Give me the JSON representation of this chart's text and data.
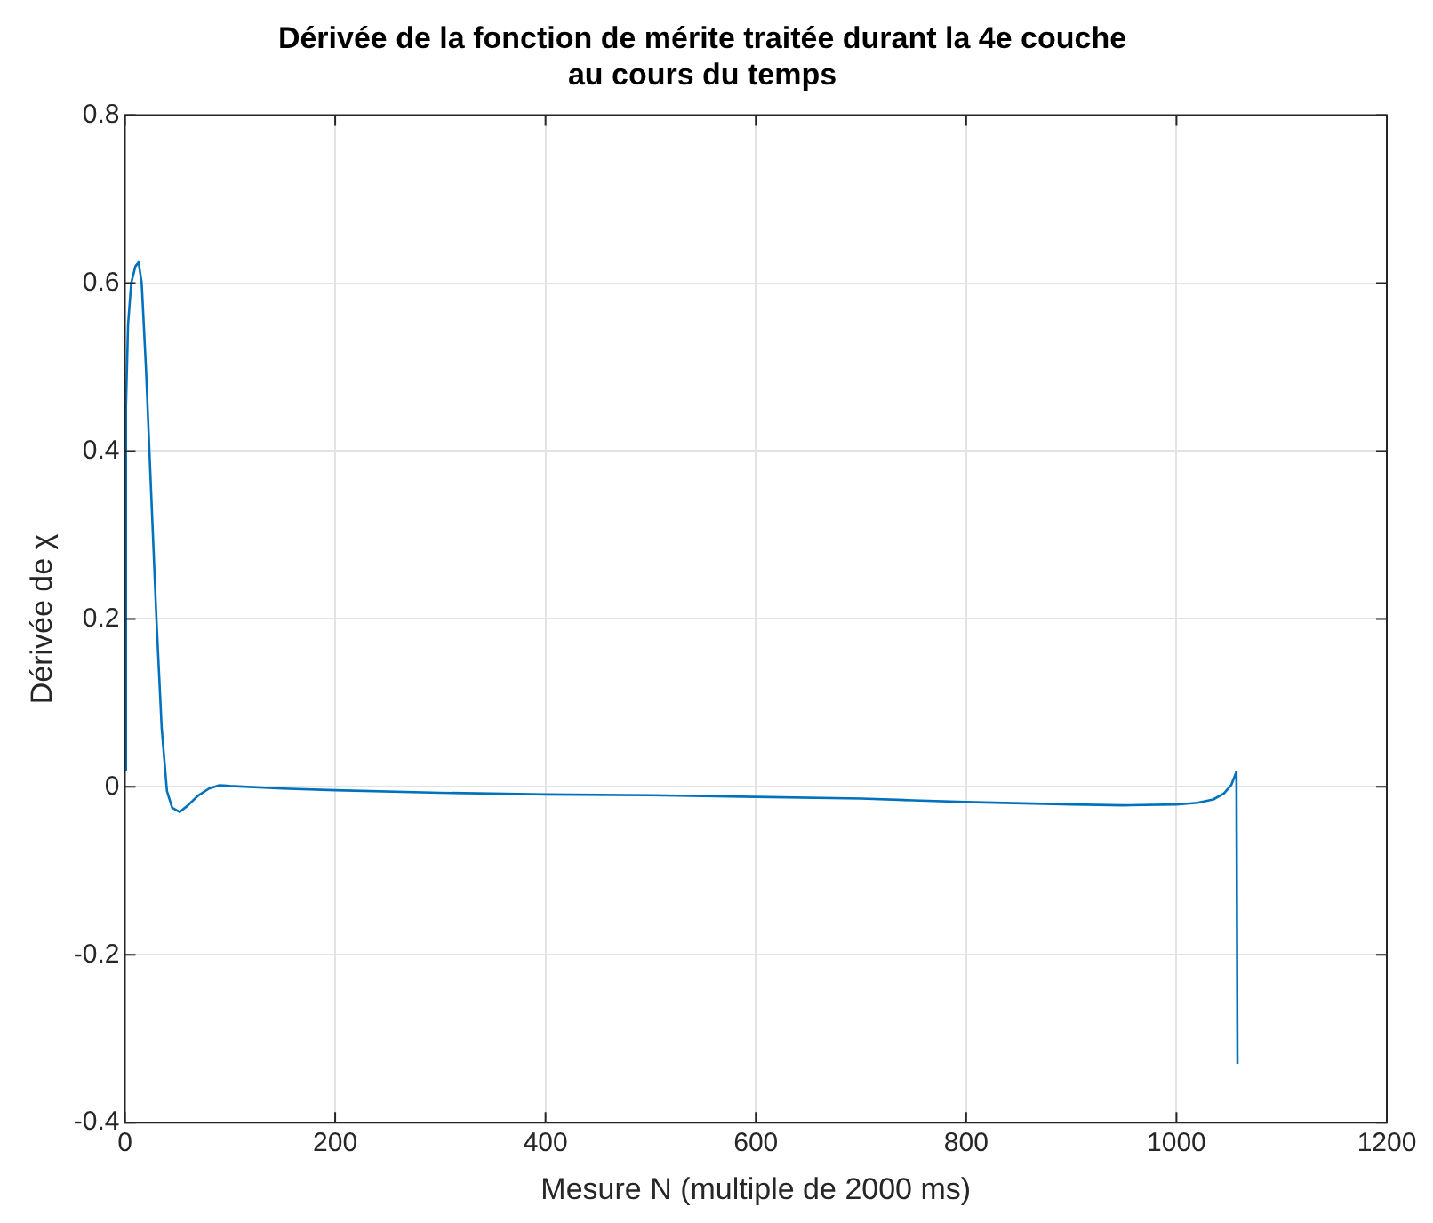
{
  "chart_data": {
    "type": "line",
    "title": [
      "Dérivée de la fonction de mérite traitée durant la 4e couche",
      "au cours du temps"
    ],
    "xlabel": "Mesure N (multiple de 2000 ms)",
    "ylabel": "Dérivée de χ",
    "x": [
      0,
      1,
      3,
      6,
      10,
      13,
      16,
      20,
      25,
      30,
      35,
      40,
      45,
      52,
      60,
      70,
      80,
      90,
      100,
      150,
      200,
      300,
      400,
      500,
      600,
      700,
      750,
      800,
      900,
      950,
      1000,
      1020,
      1035,
      1045,
      1052,
      1057,
      1058
    ],
    "series": [
      {
        "color": "#0072bd",
        "values": [
          0.02,
          0.45,
          0.55,
          0.6,
          0.62,
          0.625,
          0.6,
          0.5,
          0.35,
          0.2,
          0.07,
          -0.005,
          -0.025,
          -0.03,
          -0.022,
          -0.01,
          -0.002,
          0.002,
          0.001,
          -0.002,
          -0.004,
          -0.007,
          -0.009,
          -0.01,
          -0.012,
          -0.014,
          -0.016,
          -0.018,
          -0.021,
          -0.022,
          -0.021,
          -0.019,
          -0.015,
          -0.008,
          0.002,
          0.018,
          -0.33
        ]
      }
    ],
    "xlim": [
      0,
      1200
    ],
    "xticks": [
      0,
      200,
      400,
      600,
      800,
      1000,
      1200
    ],
    "ylim": [
      -0.4,
      0.8
    ],
    "yticks": [
      -0.4,
      -0.2,
      0,
      0.2,
      0.4,
      0.6,
      0.8
    ],
    "grid": true,
    "legend": false,
    "marker": "none",
    "line_style": "solid"
  }
}
